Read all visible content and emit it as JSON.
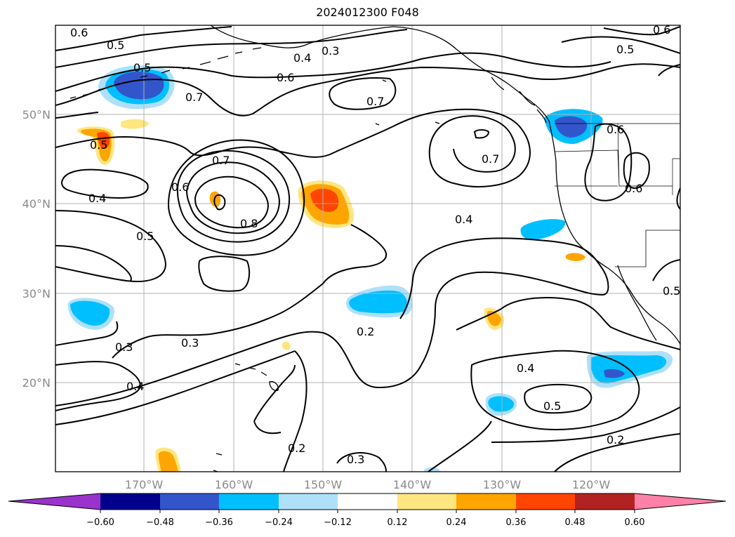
{
  "title": "2024012300 F048",
  "lon_labels": [
    "170°W",
    "160°W",
    "150°W",
    "140°W",
    "130°W",
    "120°W"
  ],
  "lat_labels": [
    "50°N",
    "40°N",
    "30°N",
    "20°N"
  ],
  "colorbar": {
    "tick_labels": [
      "−0.60",
      "−0.48",
      "−0.36",
      "−0.24",
      "−0.12",
      "0.12",
      "0.24",
      "0.36",
      "0.48",
      "0.60"
    ],
    "colors": [
      "#9933cc",
      "#00008b",
      "#3355cc",
      "#00bfff",
      "#aee0fa",
      "#ffffff",
      "#ffe680",
      "#ffa500",
      "#ff4500",
      "#b22222",
      "#ff80a8"
    ]
  },
  "contour_labels": [
    "0.6",
    "0.5",
    "0.4",
    "0.3",
    "0.6",
    "0.5",
    "0.5",
    "0.7",
    "0.7",
    "0.6",
    "0.5",
    "0.7",
    "0.7",
    "0.6",
    "0.8",
    "0.6",
    "0.6",
    "0.4",
    "0.4",
    "0.5",
    "0.2",
    "0.3",
    "0.3",
    "0.4",
    "0.4",
    "0.5",
    "0.2",
    "0.2",
    "0.3",
    "0.5"
  ]
}
